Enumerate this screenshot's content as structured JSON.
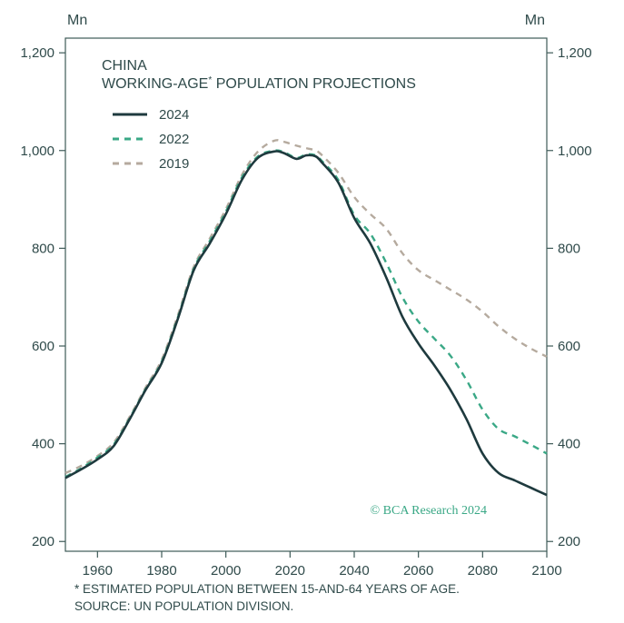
{
  "chart_data": {
    "type": "line",
    "title": "CHINA",
    "subtitle_parts": [
      "WORKING-AGE",
      "*",
      " POPULATION PROJECTIONS"
    ],
    "unit_left": "Mn",
    "unit_right": "Mn",
    "xlim": [
      1950,
      2100
    ],
    "ylim": [
      180,
      1230
    ],
    "x_ticks": [
      1960,
      1980,
      2000,
      2020,
      2040,
      2060,
      2080,
      2100
    ],
    "x_tick_labels": [
      "1960",
      "1980",
      "2000",
      "2020",
      "2040",
      "2060",
      "2080",
      "2100"
    ],
    "y_ticks": [
      200,
      400,
      600,
      800,
      1000,
      1200
    ],
    "y_tick_labels": [
      "200",
      "400",
      "600",
      "800",
      "1,000",
      "1,200"
    ],
    "legend_position": "top-left",
    "series": [
      {
        "name": "2024",
        "style": "solid",
        "color": "#1e3a3e",
        "x": [
          1950,
          1955,
          1960,
          1965,
          1970,
          1975,
          1980,
          1985,
          1990,
          1995,
          2000,
          2005,
          2010,
          2015,
          2018,
          2022,
          2025,
          2028,
          2030,
          2035,
          2040,
          2045,
          2050,
          2055,
          2060,
          2065,
          2070,
          2075,
          2080,
          2085,
          2090,
          2095,
          2100
        ],
        "values": [
          330,
          348,
          368,
          395,
          450,
          510,
          565,
          655,
          755,
          810,
          870,
          940,
          985,
          998,
          995,
          983,
          990,
          988,
          975,
          935,
          862,
          810,
          740,
          660,
          605,
          560,
          510,
          450,
          380,
          340,
          325,
          310,
          295
        ]
      },
      {
        "name": "2022",
        "style": "dashed",
        "color": "#3aa886",
        "x": [
          1950,
          1955,
          1960,
          1965,
          1970,
          1975,
          1980,
          1985,
          1990,
          1995,
          2000,
          2005,
          2010,
          2015,
          2018,
          2022,
          2025,
          2028,
          2030,
          2035,
          2040,
          2045,
          2050,
          2055,
          2060,
          2065,
          2070,
          2075,
          2080,
          2085,
          2090,
          2095,
          2100
        ],
        "values": [
          332,
          350,
          372,
          398,
          452,
          512,
          568,
          658,
          758,
          815,
          875,
          945,
          988,
          1000,
          997,
          985,
          992,
          990,
          978,
          940,
          868,
          830,
          770,
          700,
          650,
          615,
          580,
          530,
          470,
          430,
          415,
          398,
          380
        ]
      },
      {
        "name": "2019",
        "style": "dashed",
        "color": "#b5aa9e",
        "x": [
          1950,
          1955,
          1960,
          1965,
          1970,
          1975,
          1980,
          1985,
          1990,
          1995,
          2000,
          2005,
          2010,
          2015,
          2018,
          2022,
          2025,
          2028,
          2030,
          2035,
          2040,
          2045,
          2050,
          2055,
          2060,
          2065,
          2070,
          2075,
          2080,
          2085,
          2090,
          2095,
          2100
        ],
        "values": [
          340,
          355,
          375,
          402,
          455,
          515,
          572,
          662,
          762,
          820,
          880,
          950,
          998,
          1020,
          1018,
          1010,
          1005,
          1000,
          990,
          955,
          905,
          870,
          840,
          790,
          755,
          735,
          715,
          695,
          670,
          640,
          615,
          595,
          578
        ]
      }
    ],
    "credit": "© BCA Research 2024"
  },
  "footnote": {
    "line1": "* ESTIMATED POPULATION BETWEEN 15-AND-64 YEARS OF AGE.",
    "line2": "SOURCE: UN POPULATION DIVISION."
  }
}
